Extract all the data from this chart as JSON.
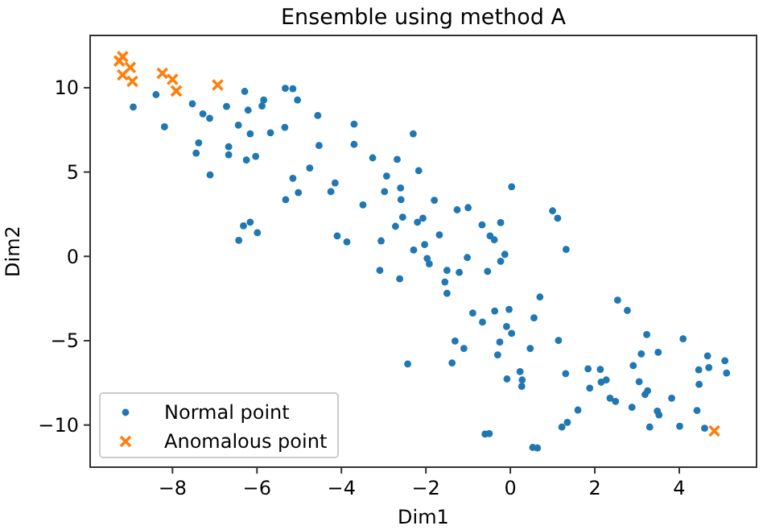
{
  "chart_data": {
    "type": "scatter",
    "title": "Ensemble using method A",
    "xlabel": "Dim1",
    "ylabel": "Dim2",
    "xlim": [
      -9.95,
      5.83
    ],
    "ylim": [
      -12.5,
      13.1
    ],
    "xticks": [
      -8,
      -6,
      -4,
      -2,
      0,
      2,
      4
    ],
    "yticks": [
      -10,
      -5,
      0,
      5,
      10
    ],
    "legend": "bottom left",
    "series": [
      {
        "name": "Normal point",
        "color": "#1f77b4",
        "marker": "circle",
        "x": [
          -8.93,
          -8.39,
          -8.19,
          -7.53,
          -7.28,
          -7.12,
          -7.38,
          -7.44,
          -7.11,
          -6.72,
          -6.67,
          -6.67,
          -6.44,
          -6.29,
          -6.21,
          -6.16,
          -6.25,
          -6.03,
          -5.84,
          -5.88,
          -5.68,
          -5.33,
          -5.15,
          -5.04,
          -5.34,
          -5.32,
          -5.15,
          -5.02,
          -4.56,
          -4.53,
          -4.75,
          -4.25,
          -4.15,
          -3.7,
          -3.7,
          -3.26,
          -3.49,
          -2.93,
          -2.98,
          -4.1,
          -3.87,
          -3.06,
          -3.09,
          -6.32,
          -6.16,
          -5.99,
          -6.43,
          -2.3,
          -2.68,
          -2.17,
          -2.6,
          -2.59,
          -1.8,
          0.03,
          -2.55,
          -2.72,
          -2.2,
          -2.07,
          -1.26,
          -1.0,
          -1.68,
          -0.67,
          -0.23,
          -0.48,
          -0.38,
          1.0,
          1.12,
          1.32,
          -2.29,
          -2.03,
          -1.97,
          -1.92,
          -1.02,
          -0.13,
          -0.23,
          -1.5,
          -1.21,
          -0.54,
          -2.62,
          -1.55,
          -1.5,
          0.7,
          -0.89,
          -0.66,
          -0.37,
          -0.03,
          -0.09,
          0.03,
          0.56,
          -0.25,
          -0.3,
          -1.31,
          -1.1,
          -2.43,
          -1.38,
          0.47,
          0.23,
          -0.08,
          0.28,
          0.27,
          1.14,
          1.31,
          2.54,
          2.77,
          3.23,
          4.09,
          3.1,
          3.5,
          1.84,
          2.13,
          2.91,
          1.88,
          2.15,
          2.27,
          3.05,
          3.25,
          3.19,
          2.36,
          2.49,
          2.88,
          3.82,
          3.48,
          3.52,
          1.6,
          1.35,
          1.22,
          3.3,
          4.01,
          4.6,
          4.42,
          4.47,
          4.46,
          4.7,
          4.67,
          5.08,
          5.12,
          -0.6,
          -0.5,
          0.53,
          0.64
        ],
        "values": [
          8.86,
          9.59,
          7.68,
          9.05,
          8.45,
          8.19,
          6.73,
          6.12,
          4.83,
          8.89,
          6.5,
          6.03,
          7.78,
          9.78,
          8.67,
          7.27,
          5.71,
          5.93,
          9.27,
          8.92,
          7.33,
          9.97,
          9.94,
          9.27,
          7.65,
          3.36,
          4.63,
          3.78,
          8.35,
          6.57,
          5.24,
          3.84,
          4.35,
          7.84,
          6.64,
          5.84,
          3.05,
          4.76,
          3.84,
          1.21,
          0.86,
          0.92,
          -0.83,
          1.81,
          2.03,
          1.4,
          0.95,
          7.27,
          5.75,
          5.08,
          4.06,
          3.36,
          3.33,
          4.13,
          2.32,
          1.78,
          2.03,
          2.26,
          2.76,
          2.89,
          1.27,
          1.87,
          2.0,
          1.21,
          0.98,
          2.7,
          2.26,
          0.41,
          0.38,
          0.7,
          -0.12,
          -0.45,
          -0.07,
          0.12,
          -0.29,
          -0.83,
          -0.95,
          -0.89,
          -1.33,
          -1.52,
          -2.19,
          -2.41,
          -3.36,
          -3.9,
          -3.24,
          -3.14,
          -4.16,
          -4.57,
          -3.65,
          -5.08,
          -5.84,
          -5.02,
          -5.46,
          -6.38,
          -6.32,
          -5.46,
          -6.83,
          -7.27,
          -7.33,
          -7.71,
          -4.98,
          -6.95,
          -2.6,
          -3.21,
          -4.64,
          -4.89,
          -5.78,
          -5.69,
          -6.67,
          -6.7,
          -6.48,
          -7.81,
          -7.46,
          -7.33,
          -7.43,
          -7.97,
          -8.19,
          -8.41,
          -8.6,
          -8.95,
          -8.41,
          -9.17,
          -9.4,
          -9.11,
          -9.84,
          -10.12,
          -10.12,
          -10.07,
          -10.19,
          -9.14,
          -7.59,
          -6.73,
          -6.6,
          -5.9,
          -6.19,
          -6.92,
          -10.54,
          -10.51,
          -11.33,
          -11.36
        ]
      },
      {
        "name": "Anomalous point",
        "color": "#ff7f0e",
        "marker": "cross",
        "x": [
          -9.18,
          -9.26,
          -9.0,
          -9.18,
          -8.95,
          -8.24,
          -8.0,
          -7.91,
          -6.93,
          4.83
        ],
        "values": [
          11.84,
          11.59,
          11.2,
          10.76,
          10.38,
          10.86,
          10.5,
          9.81,
          10.16,
          -10.35
        ]
      }
    ]
  }
}
